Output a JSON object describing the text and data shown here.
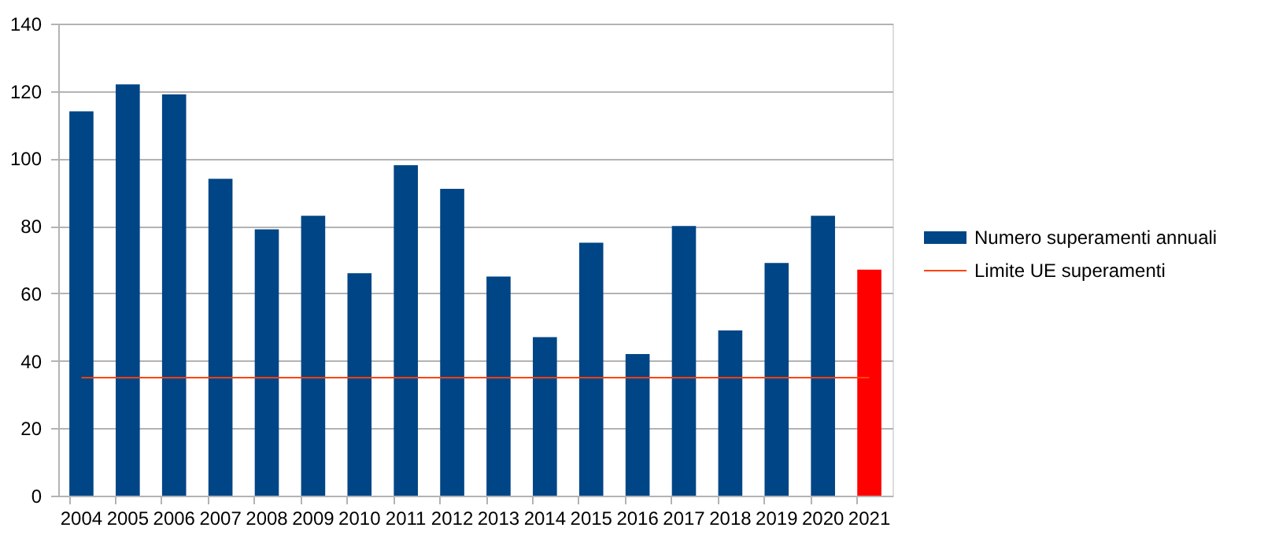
{
  "chart_data": {
    "type": "bar",
    "categories": [
      "2004",
      "2005",
      "2006",
      "2007",
      "2008",
      "2009",
      "2010",
      "2011",
      "2012",
      "2013",
      "2014",
      "2015",
      "2016",
      "2017",
      "2018",
      "2019",
      "2020",
      "2021"
    ],
    "series": [
      {
        "name": "Numero superamenti annuali",
        "color": "#004586",
        "colors": [
          "#004586",
          "#004586",
          "#004586",
          "#004586",
          "#004586",
          "#004586",
          "#004586",
          "#004586",
          "#004586",
          "#004586",
          "#004586",
          "#004586",
          "#004586",
          "#004586",
          "#004586",
          "#004586",
          "#004586",
          "#ff0000"
        ],
        "values": [
          114,
          122,
          119,
          94,
          79,
          83,
          66,
          98,
          91,
          65,
          47,
          75,
          42,
          80,
          49,
          69,
          83,
          67
        ]
      },
      {
        "name": "Limite UE superamenti",
        "type": "line",
        "color": "#ff420e",
        "values": [
          35,
          35,
          35,
          35,
          35,
          35,
          35,
          35,
          35,
          35,
          35,
          35,
          35,
          35,
          35,
          35,
          35,
          35
        ]
      }
    ],
    "ylim": [
      0,
      140
    ],
    "yticks": [
      0,
      20,
      40,
      60,
      80,
      100,
      120,
      140
    ],
    "grid": "y",
    "legend": "right"
  }
}
